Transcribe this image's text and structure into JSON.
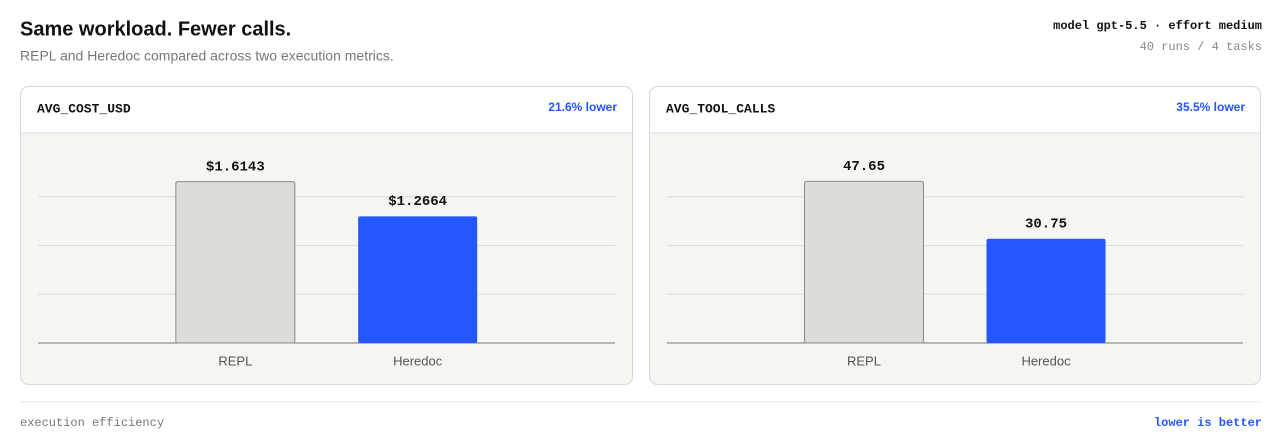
{
  "header": {
    "title": "Same workload. Fewer calls.",
    "subtitle": "REPL and Heredoc compared across two execution metrics.",
    "model": "model gpt-5.5 · effort medium",
    "meta": "40 runs / 4 tasks"
  },
  "chart_data": [
    {
      "type": "bar",
      "title": "AVG_COST_USD",
      "annotation": "21.6% lower",
      "categories": [
        "REPL",
        "Heredoc"
      ],
      "values": [
        1.6143,
        1.2664
      ],
      "value_labels": [
        "$1.6143",
        "$1.2664"
      ],
      "colors": [
        "#dddcd7",
        "#2457ff"
      ],
      "ylim": [
        0,
        1.95
      ],
      "yticks": [
        0,
        0.4875,
        0.975,
        1.4625
      ],
      "grid": true
    },
    {
      "type": "bar",
      "title": "AVG_TOOL_CALLS",
      "annotation": "35.5% lower",
      "categories": [
        "REPL",
        "Heredoc"
      ],
      "values": [
        47.65,
        30.75
      ],
      "value_labels": [
        "47.65",
        "30.75"
      ],
      "colors": [
        "#dddcd7",
        "#2457ff"
      ],
      "ylim": [
        0,
        57.5
      ],
      "yticks": [
        0,
        14.375,
        28.75,
        43.125
      ],
      "grid": true
    }
  ],
  "footer": {
    "left": "execution efficiency",
    "right": "lower is better"
  }
}
